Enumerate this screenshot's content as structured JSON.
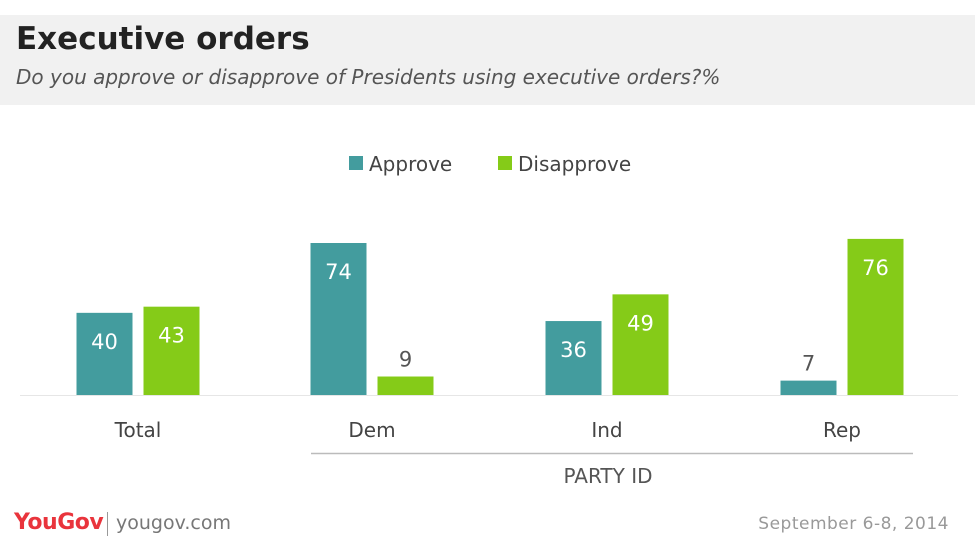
{
  "header": {
    "title": "Executive orders",
    "subtitle": "Do you approve or disapprove of Presidents using executive orders?%"
  },
  "colors": {
    "approve": "#439c9e",
    "disapprove": "#85cb18",
    "axis": "#e6e6e6",
    "text": "#444444"
  },
  "chart_data": {
    "type": "bar",
    "categories": [
      "Total",
      "Dem",
      "Ind",
      "Rep"
    ],
    "series": [
      {
        "name": "Approve",
        "values": [
          40,
          74,
          36,
          7
        ]
      },
      {
        "name": "Disapprove",
        "values": [
          43,
          9,
          49,
          76
        ]
      }
    ],
    "group_label": "PARTY ID",
    "legend_position": "top-center",
    "grid": false,
    "ylim": [
      0,
      80
    ]
  },
  "footer": {
    "logo": "YouGov",
    "site": "yougov.com",
    "date": "September 6-8, 2014"
  }
}
